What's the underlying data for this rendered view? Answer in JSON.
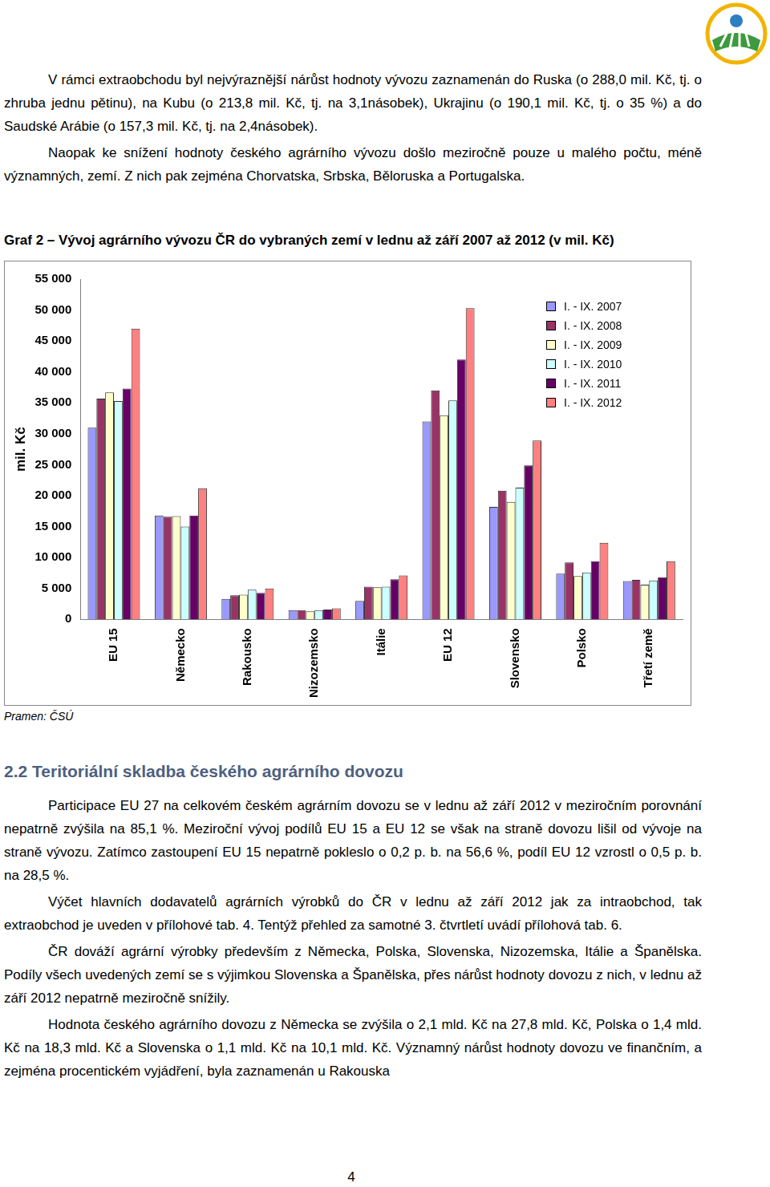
{
  "document": {
    "top_paragraphs": [
      "V rámci extraobchodu byl nejvýraznější nárůst hodnoty vývozu zaznamenán do Ruska (o 288,0 mil. Kč, tj. o zhruba jednu pětinu), na Kubu (o 213,8 mil. Kč, tj. na 3,1násobek), Ukrajinu (o 190,1 mil. Kč, tj. o 35 %) a do Saudské Arábie (o 157,3 mil. Kč, tj. na 2,4násobek).",
      "Naopak ke snížení hodnoty českého agrárního vývozu došlo meziročně pouze u malého počtu, méně významných, zemí. Z nich pak zejména Chorvatska, Srbska, Běloruska a Portugalska."
    ],
    "caption": "Graf 2 – Vývoj agrárního vývozu ČR do vybraných zemí v lednu až září 2007 až 2012 (v mil. Kč)",
    "source": "Pramen: ČSÚ",
    "heading": "2.2 Teritoriální skladba českého agrárního dovozu",
    "bottom_paragraphs": [
      "Participace EU 27 na celkovém českém agrárním dovozu se v lednu až září 2012 v meziročním porovnání nepatrně zvýšila na 85,1 %. Meziroční vývoj podílů EU 15 a EU 12 se však na straně dovozu lišil od vývoje na straně vývozu. Zatímco zastoupení EU 15 nepatrně pokleslo o 0,2 p. b. na 56,6 %, podíl EU 12 vzrostl o 0,5 p. b. na 28,5 %.",
      "Výčet hlavních dodavatelů agrárních výrobků do ČR v lednu až září 2012 jak za intraobchod, tak extraobchod je uveden v přílohové tab. 4. Tentýž přehled za samotné 3. čtvrtletí uvádí přílohová tab. 6.",
      "ČR dováží agrární výrobky především z Německa, Polska, Slovenska, Nizozemska, Itálie a Španělska. Podíly všech uvedených zemí se s výjimkou Slovenska a Španělska, přes nárůst hodnoty dovozu z nich, v lednu až září 2012 nepatrně meziročně snížily.",
      "Hodnota českého agrárního dovozu z Německa se zvýšila o 2,1 mld. Kč na 27,8 mld. Kč, Polska o 1,4 mld. Kč na 18,3 mld. Kč a Slovenska o 1,1 mld. Kč na 10,1 mld. Kč. Významný nárůst hodnoty dovozu ve finančním, a zejména procentickém vyjádření, byla zaznamenán u Rakouska"
    ],
    "page_number": "4"
  },
  "chart_data": {
    "type": "bar",
    "y_label": "mil. Kč",
    "categories": [
      "EU 15",
      "Německo",
      "Rakousko",
      "Nizozemsko",
      "Itálie",
      "EU 12",
      "Slovensko",
      "Polsko",
      "Třetí země"
    ],
    "series": [
      {
        "name": "I. - IX. 2007",
        "color": "#9999ff",
        "values": [
          31000,
          16800,
          3300,
          1500,
          3000,
          32000,
          18200,
          7400,
          6200
        ]
      },
      {
        "name": "I. - IX. 2008",
        "color": "#993366",
        "values": [
          35700,
          16600,
          3900,
          1500,
          5300,
          37000,
          20800,
          9200,
          6400
        ]
      },
      {
        "name": "I. - IX. 2009",
        "color": "#ffffcc",
        "values": [
          36700,
          16700,
          4000,
          1300,
          5200,
          33000,
          19000,
          7000,
          5600
        ]
      },
      {
        "name": "I. - IX. 2010",
        "color": "#ccffff",
        "values": [
          35300,
          15000,
          4800,
          1500,
          5300,
          35400,
          21300,
          7600,
          6300
        ]
      },
      {
        "name": "I. - IX. 2011",
        "color": "#660066",
        "values": [
          37300,
          16800,
          4300,
          1600,
          6500,
          42000,
          24900,
          9400,
          6800
        ]
      },
      {
        "name": "I. - IX. 2012",
        "color": "#ff8080",
        "values": [
          47000,
          21200,
          5000,
          1800,
          7100,
          50300,
          28900,
          12400,
          9400
        ]
      }
    ],
    "ylim": [
      0,
      55000
    ],
    "yticks": [
      0,
      {
        "value": 5000,
        "label": "5 000"
      },
      {
        "value": 10000,
        "label": "10 000"
      },
      {
        "value": 15000,
        "label": "15 000"
      },
      {
        "value": 20000,
        "label": "20 000"
      },
      {
        "value": 25000,
        "label": "25 000"
      },
      {
        "value": 30000,
        "label": "30 000"
      },
      {
        "value": 35000,
        "label": "35 000"
      },
      {
        "value": 40000,
        "label": "40 000"
      },
      {
        "value": 45000,
        "label": "45 000"
      },
      {
        "value": 50000,
        "label": "50 000"
      },
      {
        "value": 55000,
        "label": "55 000"
      }
    ],
    "grid": false,
    "legend": "upper right"
  }
}
